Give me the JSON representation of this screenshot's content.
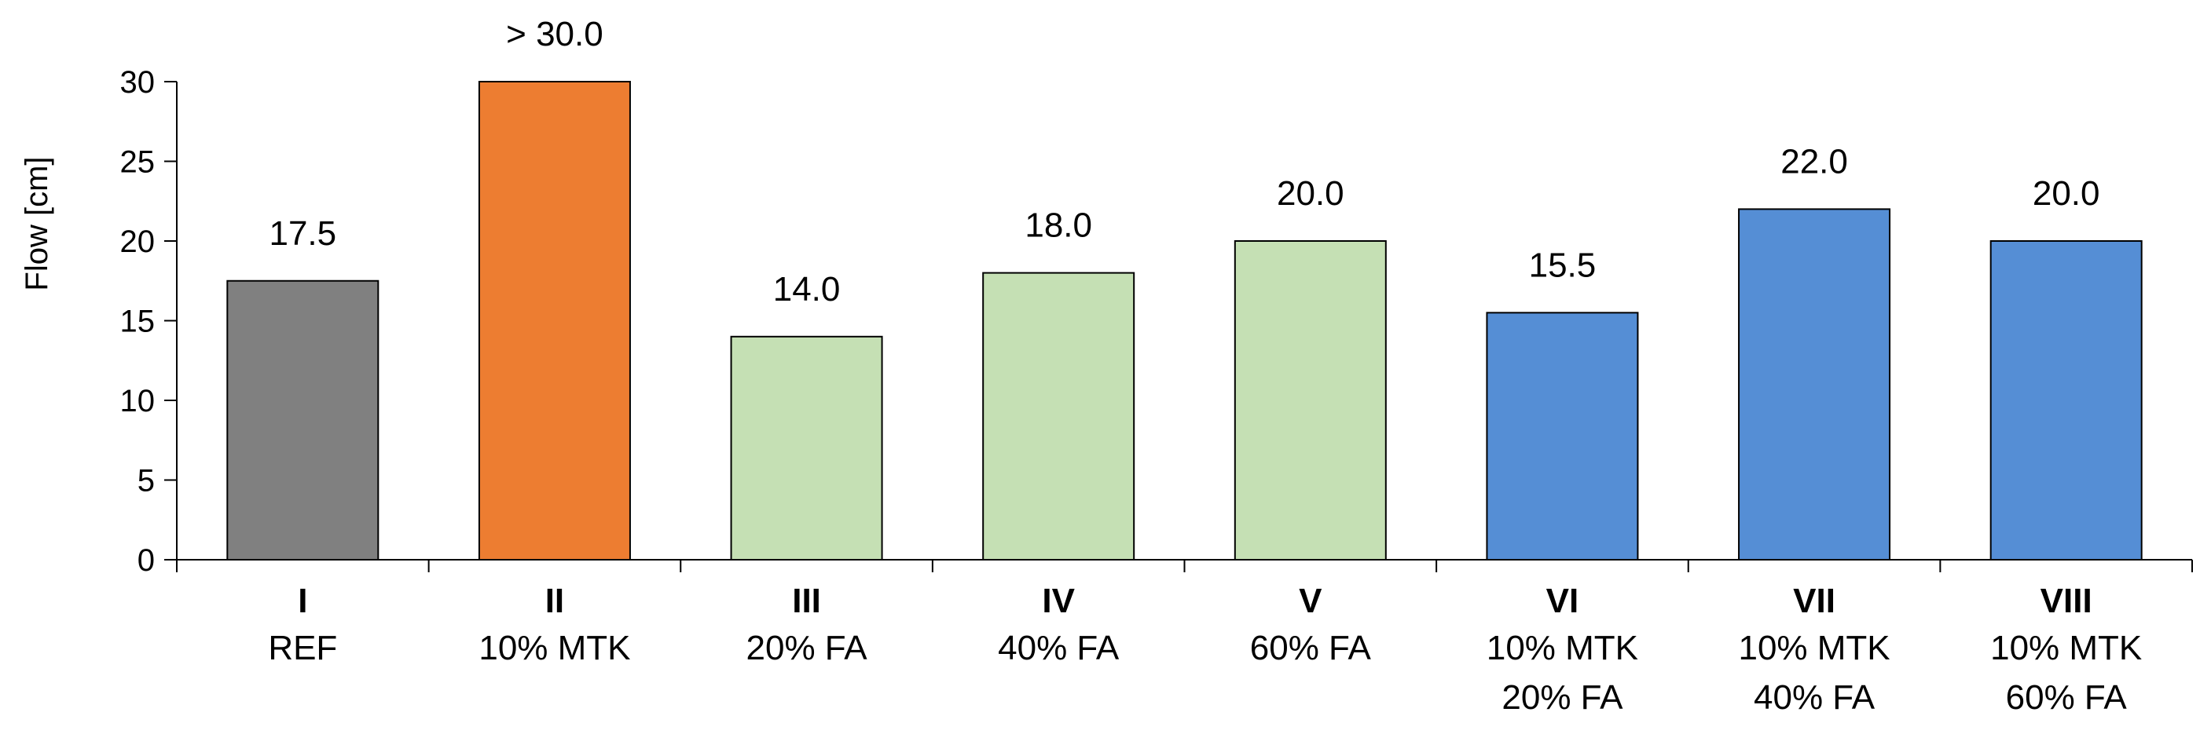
{
  "chart_data": {
    "type": "bar",
    "title": "",
    "xlabel": "",
    "ylabel": "Flow  [cm]",
    "ylim": [
      0,
      30
    ],
    "yticks": [
      0,
      5,
      10,
      15,
      20,
      25,
      30
    ],
    "grid": false,
    "legend": "none",
    "categories": [
      {
        "roman": "I",
        "lines": [
          "REF"
        ]
      },
      {
        "roman": "II",
        "lines": [
          "10% MTK"
        ]
      },
      {
        "roman": "III",
        "lines": [
          "20% FA"
        ]
      },
      {
        "roman": "IV",
        "lines": [
          "40% FA"
        ]
      },
      {
        "roman": "V",
        "lines": [
          "60% FA"
        ]
      },
      {
        "roman": "VI",
        "lines": [
          "10% MTK",
          "20% FA"
        ]
      },
      {
        "roman": "VII",
        "lines": [
          "10% MTK",
          "40% FA"
        ]
      },
      {
        "roman": "VIII",
        "lines": [
          "10% MTK",
          "60% FA"
        ]
      }
    ],
    "values": [
      17.5,
      30.0,
      14.0,
      18.0,
      20.0,
      15.5,
      22.0,
      20.0
    ],
    "data_labels": [
      "17.5",
      "> 30.0",
      "14.0",
      "18.0",
      "20.0",
      "15.5",
      "22.0",
      "20.0"
    ],
    "colors": [
      "#808080",
      "#ED7D31",
      "#C5E0B4",
      "#C5E0B4",
      "#C5E0B4",
      "#558ED5",
      "#558ED5",
      "#558ED5"
    ]
  }
}
